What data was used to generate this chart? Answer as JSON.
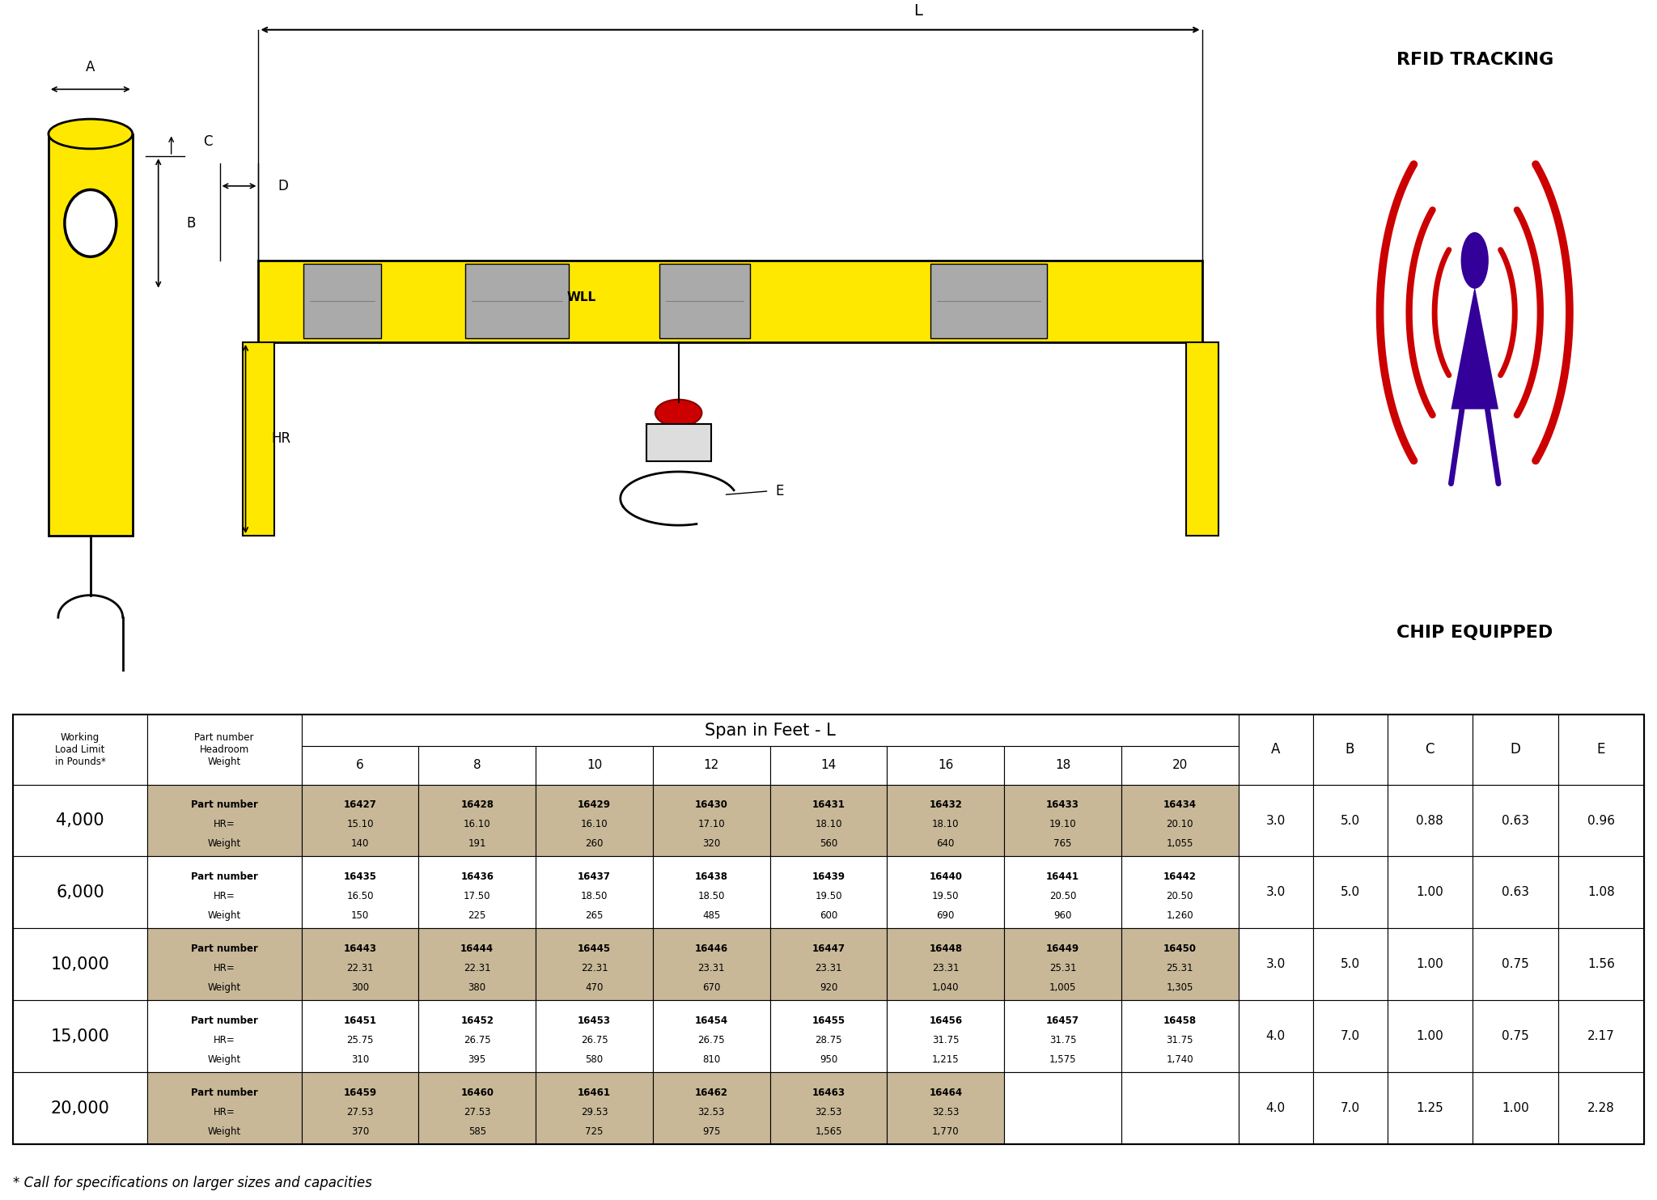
{
  "bg_color": "#ffffff",
  "tan_color": "#c8b898",
  "white_color": "#ffffff",
  "border_color": "#000000",
  "yellow": "#FFE800",
  "rfid_text": "RFID TRACKING",
  "chip_text": "CHIP EQUIPPED",
  "footnote": "* Call for specifications on larger sizes and capacities",
  "span_header": "Span in Feet - L",
  "span_cols": [
    "6",
    "8",
    "10",
    "12",
    "14",
    "16",
    "18",
    "20"
  ],
  "dim_labels": [
    "A",
    "B",
    "C",
    "D",
    "E"
  ],
  "rows": [
    {
      "wll": "4,000",
      "data": [
        [
          "16427",
          "15.10",
          "140"
        ],
        [
          "16428",
          "16.10",
          "191"
        ],
        [
          "16429",
          "16.10",
          "260"
        ],
        [
          "16430",
          "17.10",
          "320"
        ],
        [
          "16431",
          "18.10",
          "560"
        ],
        [
          "16432",
          "18.10",
          "640"
        ],
        [
          "16433",
          "19.10",
          "765"
        ],
        [
          "16434",
          "20.10",
          "1,055"
        ]
      ],
      "dims": [
        "3.0",
        "5.0",
        "0.88",
        "0.63",
        "0.96"
      ]
    },
    {
      "wll": "6,000",
      "data": [
        [
          "16435",
          "16.50",
          "150"
        ],
        [
          "16436",
          "17.50",
          "225"
        ],
        [
          "16437",
          "18.50",
          "265"
        ],
        [
          "16438",
          "18.50",
          "485"
        ],
        [
          "16439",
          "19.50",
          "600"
        ],
        [
          "16440",
          "19.50",
          "690"
        ],
        [
          "16441",
          "20.50",
          "960"
        ],
        [
          "16442",
          "20.50",
          "1,260"
        ]
      ],
      "dims": [
        "3.0",
        "5.0",
        "1.00",
        "0.63",
        "1.08"
      ]
    },
    {
      "wll": "10,000",
      "data": [
        [
          "16443",
          "22.31",
          "300"
        ],
        [
          "16444",
          "22.31",
          "380"
        ],
        [
          "16445",
          "22.31",
          "470"
        ],
        [
          "16446",
          "23.31",
          "670"
        ],
        [
          "16447",
          "23.31",
          "920"
        ],
        [
          "16448",
          "23.31",
          "1,040"
        ],
        [
          "16449",
          "25.31",
          "1,005"
        ],
        [
          "16450",
          "25.31",
          "1,305"
        ]
      ],
      "dims": [
        "3.0",
        "5.0",
        "1.00",
        "0.75",
        "1.56"
      ]
    },
    {
      "wll": "15,000",
      "data": [
        [
          "16451",
          "25.75",
          "310"
        ],
        [
          "16452",
          "26.75",
          "395"
        ],
        [
          "16453",
          "26.75",
          "580"
        ],
        [
          "16454",
          "26.75",
          "810"
        ],
        [
          "16455",
          "28.75",
          "950"
        ],
        [
          "16456",
          "31.75",
          "1,215"
        ],
        [
          "16457",
          "31.75",
          "1,575"
        ],
        [
          "16458",
          "31.75",
          "1,740"
        ]
      ],
      "dims": [
        "4.0",
        "7.0",
        "1.00",
        "0.75",
        "2.17"
      ]
    },
    {
      "wll": "20,000",
      "data": [
        [
          "16459",
          "27.53",
          "370"
        ],
        [
          "16460",
          "27.53",
          "585"
        ],
        [
          "16461",
          "29.53",
          "725"
        ],
        [
          "16462",
          "32.53",
          "975"
        ],
        [
          "16463",
          "32.53",
          "1,565"
        ],
        [
          "16464",
          "32.53",
          "1,770"
        ],
        [
          "",
          "",
          ""
        ],
        [
          "",
          "",
          ""
        ]
      ],
      "dims": [
        "4.0",
        "7.0",
        "1.25",
        "1.00",
        "2.28"
      ]
    }
  ]
}
